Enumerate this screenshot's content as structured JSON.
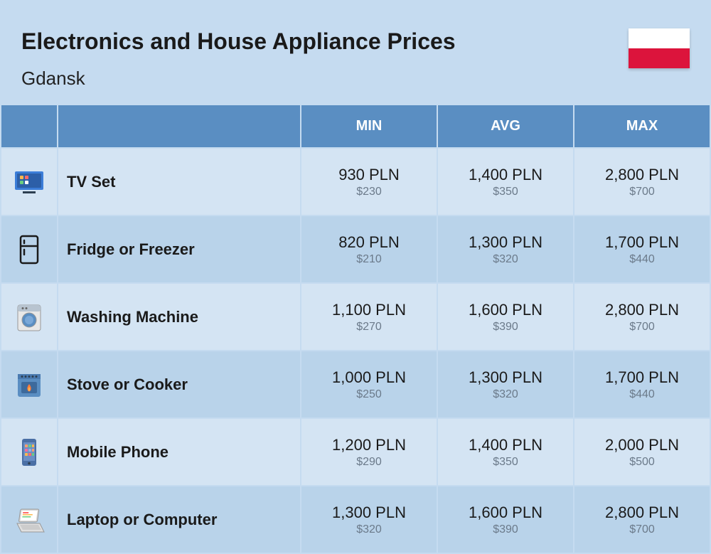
{
  "header": {
    "title": "Electronics and House Appliance Prices",
    "subtitle": "Gdansk"
  },
  "columns": {
    "min": "MIN",
    "avg": "AVG",
    "max": "MAX"
  },
  "rows": [
    {
      "icon": "tv",
      "name": "TV Set",
      "min_pln": "930 PLN",
      "min_usd": "$230",
      "avg_pln": "1,400 PLN",
      "avg_usd": "$350",
      "max_pln": "2,800 PLN",
      "max_usd": "$700"
    },
    {
      "icon": "fridge",
      "name": "Fridge or Freezer",
      "min_pln": "820 PLN",
      "min_usd": "$210",
      "avg_pln": "1,300 PLN",
      "avg_usd": "$320",
      "max_pln": "1,700 PLN",
      "max_usd": "$440"
    },
    {
      "icon": "washer",
      "name": "Washing Machine",
      "min_pln": "1,100 PLN",
      "min_usd": "$270",
      "avg_pln": "1,600 PLN",
      "avg_usd": "$390",
      "max_pln": "2,800 PLN",
      "max_usd": "$700"
    },
    {
      "icon": "stove",
      "name": "Stove or Cooker",
      "min_pln": "1,000 PLN",
      "min_usd": "$250",
      "avg_pln": "1,300 PLN",
      "avg_usd": "$320",
      "max_pln": "1,700 PLN",
      "max_usd": "$440"
    },
    {
      "icon": "phone",
      "name": "Mobile Phone",
      "min_pln": "1,200 PLN",
      "min_usd": "$290",
      "avg_pln": "1,400 PLN",
      "avg_usd": "$350",
      "max_pln": "2,000 PLN",
      "max_usd": "$500"
    },
    {
      "icon": "laptop",
      "name": "Laptop or Computer",
      "min_pln": "1,300 PLN",
      "min_usd": "$320",
      "avg_pln": "1,600 PLN",
      "avg_usd": "$390",
      "max_pln": "2,800 PLN",
      "max_usd": "$700"
    }
  ],
  "styling": {
    "background": "#c5dbf0",
    "header_bg": "#5a8ec2",
    "header_text": "#ffffff",
    "row_odd_bg": "#d4e4f3",
    "row_even_bg": "#b9d3ea",
    "title_fontsize": 32,
    "subtitle_fontsize": 26,
    "th_fontsize": 20,
    "name_fontsize": 22,
    "pln_fontsize": 22,
    "usd_fontsize": 16,
    "usd_color": "#6b7a8a",
    "flag_top": "#ffffff",
    "flag_bottom": "#dc143c",
    "icon_colors": {
      "tv_body": "#3b7dd8",
      "tv_screen": "#2c5fa8",
      "fridge_outline": "#1a1a1a",
      "washer_body": "#e8e8e8",
      "washer_top": "#b8c4d0",
      "stove_body": "#5a8ec2",
      "stove_flame": "#ff7b3a",
      "phone_body": "#4a6fa5",
      "phone_screen": "#6b8fc5",
      "laptop_body": "#d8d8d8",
      "laptop_screen": "#fff"
    }
  }
}
